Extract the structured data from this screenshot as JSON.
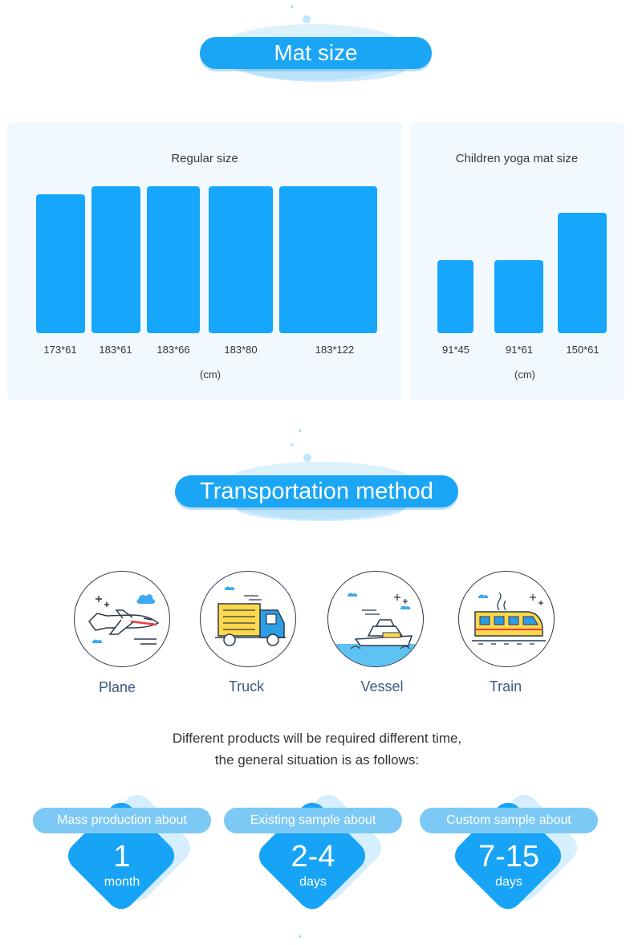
{
  "mat_size": {
    "title": "Mat size",
    "regular": {
      "title": "Regular size",
      "sizes": [
        "173*61",
        "183*61",
        "183*66",
        "183*80",
        "183*122"
      ],
      "unit": "(cm)"
    },
    "children": {
      "title": "Children yoga mat size",
      "sizes": [
        "91*45",
        "91*61",
        "150*61"
      ],
      "unit": "(cm)"
    }
  },
  "transport": {
    "title": "Transportation method",
    "methods": [
      {
        "label": "Plane",
        "icon": "plane-icon"
      },
      {
        "label": "Truck",
        "icon": "truck-icon"
      },
      {
        "label": "Vessel",
        "icon": "vessel-icon"
      },
      {
        "label": "Train",
        "icon": "train-icon"
      }
    ],
    "note_line1": "Different products will be required different time,",
    "note_line2": "the general situation is as follows:"
  },
  "lead_times": [
    {
      "label": "Mass production about",
      "value": "1",
      "unit": "month"
    },
    {
      "label": "Existing sample about",
      "value": "2-4",
      "unit": "days"
    },
    {
      "label": "Custom sample about",
      "value": "7-15",
      "unit": "days"
    }
  ],
  "colors": {
    "accent": "#16a6fb",
    "tag": "#7cc9f5",
    "panel": "#f2f9fe",
    "label_text": "#3b5a85"
  }
}
